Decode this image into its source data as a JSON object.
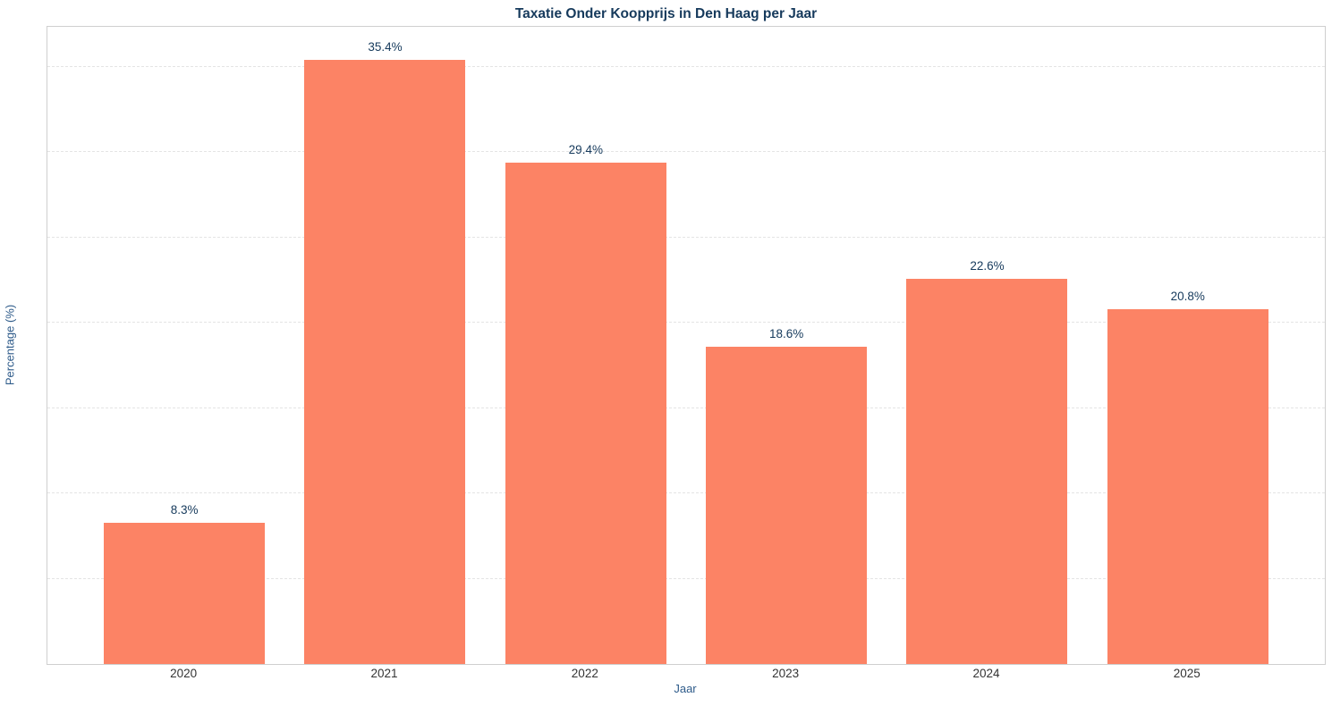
{
  "chart_data": {
    "type": "bar",
    "title": "Taxatie Onder Koopprijs in Den Haag per Jaar",
    "xlabel": "Jaar",
    "ylabel": "Percentage (%)",
    "categories": [
      "2020",
      "2021",
      "2022",
      "2023",
      "2024",
      "2025"
    ],
    "values": [
      8.3,
      35.4,
      29.4,
      18.6,
      22.6,
      20.8
    ],
    "value_labels": [
      "8.3%",
      "35.4%",
      "29.4%",
      "18.6%",
      "22.6%",
      "20.8%"
    ],
    "yticks": [
      0,
      5,
      10,
      15,
      20,
      25,
      30,
      35
    ],
    "ylim": [
      0,
      37.35
    ],
    "grid": "horizontal-dashed",
    "legend": "none",
    "colors": {
      "bar": "#FC8365",
      "title": "#163A5C",
      "value_label": "#163A5C",
      "axis_title": "#2E5B8A",
      "tick_label": "#333333",
      "gridline": "#e4e4e4",
      "plot_border": "#cfcfcf",
      "background": "#ffffff"
    }
  }
}
